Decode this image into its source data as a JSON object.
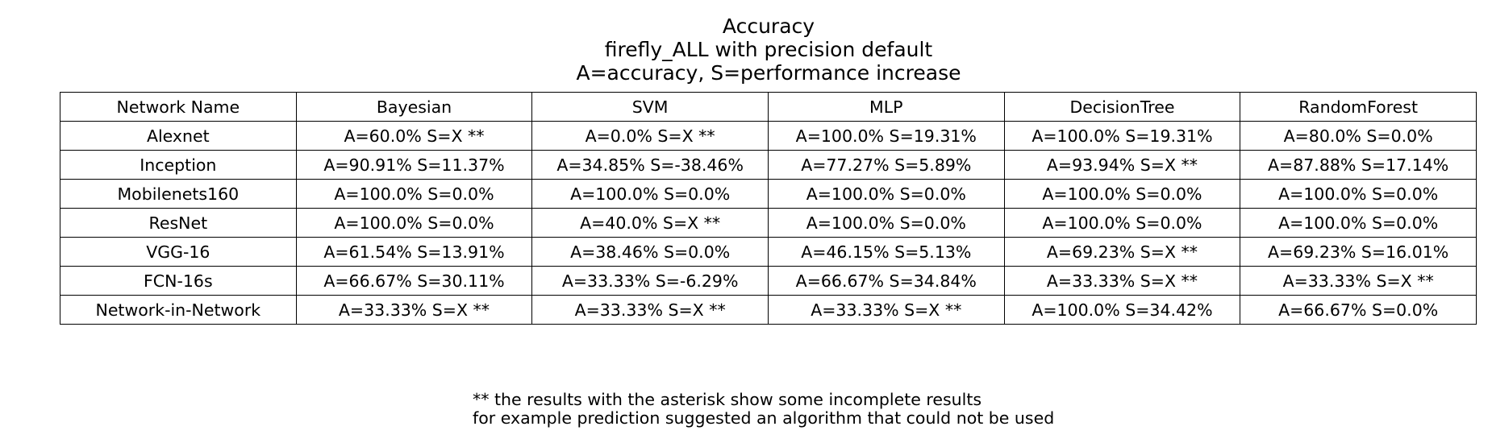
{
  "chart_data": {
    "type": "table",
    "title_lines": [
      "Accuracy",
      "firefly_ALL with precision default",
      "A=accuracy, S=performance increase"
    ],
    "columns": [
      "Network Name",
      "Bayesian",
      "SVM",
      "MLP",
      "DecisionTree",
      "RandomForest"
    ],
    "rows": [
      [
        "Alexnet",
        "A=60.0% S=X **",
        "A=0.0% S=X **",
        "A=100.0% S=19.31%",
        "A=100.0% S=19.31%",
        "A=80.0% S=0.0%"
      ],
      [
        "Inception",
        "A=90.91% S=11.37%",
        "A=34.85% S=-38.46%",
        "A=77.27% S=5.89%",
        "A=93.94% S=X **",
        "A=87.88% S=17.14%"
      ],
      [
        "Mobilenets160",
        "A=100.0% S=0.0%",
        "A=100.0% S=0.0%",
        "A=100.0% S=0.0%",
        "A=100.0% S=0.0%",
        "A=100.0% S=0.0%"
      ],
      [
        "ResNet",
        "A=100.0% S=0.0%",
        "A=40.0% S=X **",
        "A=100.0% S=0.0%",
        "A=100.0% S=0.0%",
        "A=100.0% S=0.0%"
      ],
      [
        "VGG-16",
        "A=61.54% S=13.91%",
        "A=38.46% S=0.0%",
        "A=46.15% S=5.13%",
        "A=69.23% S=X **",
        "A=69.23% S=16.01%"
      ],
      [
        "FCN-16s",
        "A=66.67% S=30.11%",
        "A=33.33% S=-6.29%",
        "A=66.67% S=34.84%",
        "A=33.33% S=X **",
        "A=33.33% S=X **"
      ],
      [
        "Network-in-Network",
        "A=33.33% S=X **",
        "A=33.33% S=X **",
        "A=33.33% S=X **",
        "A=100.0% S=34.42%",
        "A=66.67% S=0.0%"
      ]
    ],
    "footnote_lines": [
      "** the results with the asterisk show some incomplete results",
      "for example prediction suggested an algorithm that could not be used"
    ]
  }
}
